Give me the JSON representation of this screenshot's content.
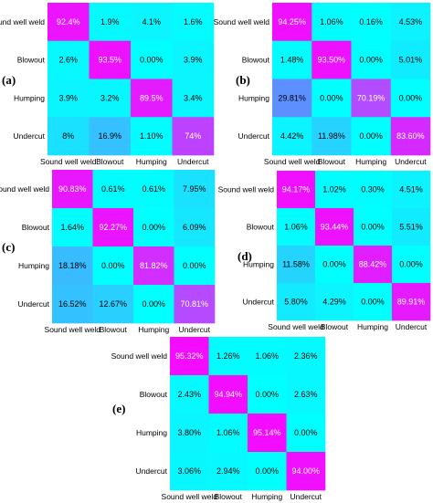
{
  "chart_data": [
    {
      "type": "heatmap",
      "panel": "(a)",
      "rows": [
        "Sound well weld",
        "Blowout",
        "Humping",
        "Undercut"
      ],
      "columns": [
        "Sound well weld",
        "Blowout",
        "Humping",
        "Undercut"
      ],
      "values": [
        [
          92.4,
          1.9,
          4.1,
          1.6
        ],
        [
          2.6,
          93.5,
          0.0,
          3.9
        ],
        [
          3.9,
          3.2,
          89.5,
          3.4
        ],
        [
          8,
          16.9,
          1.1,
          74
        ]
      ],
      "labels": [
        [
          "92.4%",
          "1.9%",
          "4.1%",
          "1.6%"
        ],
        [
          "2.6%",
          "93.5%",
          "0.00%",
          "3.9%"
        ],
        [
          "3.9%",
          "3.2%",
          "89.5%",
          "3.4%"
        ],
        [
          "8%",
          "16.9%",
          "1.10%",
          "74%"
        ]
      ]
    },
    {
      "type": "heatmap",
      "panel": "(b)",
      "rows": [
        "Sound well weld",
        "Blowout",
        "Humping",
        "Undercut"
      ],
      "columns": [
        "Sound well weld",
        "Blowout",
        "Humping",
        "Undercut"
      ],
      "values": [
        [
          94.25,
          1.06,
          0.16,
          4.53
        ],
        [
          1.48,
          93.5,
          0.0,
          5.01
        ],
        [
          29.81,
          0.0,
          70.19,
          0.0
        ],
        [
          4.42,
          11.98,
          0.0,
          83.6
        ]
      ],
      "labels": [
        [
          "94.25%",
          "1.06%",
          "0.16%",
          "4.53%"
        ],
        [
          "1.48%",
          "93.50%",
          "0.00%",
          "5.01%"
        ],
        [
          "29.81%",
          "0.00%",
          "70.19%",
          "0.00%"
        ],
        [
          "4.42%",
          "11.98%",
          "0.00%",
          "83.60%"
        ]
      ]
    },
    {
      "type": "heatmap",
      "panel": "(c)",
      "rows": [
        "Sound well weld",
        "Blowout",
        "Humping",
        "Undercut"
      ],
      "columns": [
        "Sound well weld",
        "Blowout",
        "Humping",
        "Undercut"
      ],
      "values": [
        [
          90.83,
          0.61,
          0.61,
          7.95
        ],
        [
          1.64,
          92.27,
          0.0,
          6.09
        ],
        [
          18.18,
          0.0,
          81.82,
          0.0
        ],
        [
          16.52,
          12.67,
          0.0,
          70.81
        ]
      ],
      "labels": [
        [
          "90.83%",
          "0.61%",
          "0.61%",
          "7.95%"
        ],
        [
          "1.64%",
          "92.27%",
          "0.00%",
          "6.09%"
        ],
        [
          "18.18%",
          "0.00%",
          "81.82%",
          "0.00%"
        ],
        [
          "16.52%",
          "12.67%",
          "0.00%",
          "70.81%"
        ]
      ]
    },
    {
      "type": "heatmap",
      "panel": "(d)",
      "rows": [
        "Sound well weld",
        "Blowout",
        "Humping",
        "Undercut"
      ],
      "columns": [
        "Sound well weld",
        "Blowout",
        "Humping",
        "Undercut"
      ],
      "values": [
        [
          94.17,
          1.02,
          0.3,
          4.51
        ],
        [
          1.06,
          93.44,
          0.0,
          5.51
        ],
        [
          11.58,
          0.0,
          88.42,
          0.0
        ],
        [
          5.8,
          4.29,
          0.0,
          89.91
        ]
      ],
      "labels": [
        [
          "94.17%",
          "1.02%",
          "0.30%",
          "4.51%"
        ],
        [
          "1.06%",
          "93.44%",
          "0.00%",
          "5.51%"
        ],
        [
          "11.58%",
          "0.00%",
          "88.42%",
          "0.00%"
        ],
        [
          "5.80%",
          "4.29%",
          "0.00%",
          "89.91%"
        ]
      ]
    },
    {
      "type": "heatmap",
      "panel": "(e)",
      "rows": [
        "Sound well weld",
        "Blowout",
        "Humping",
        "Undercut"
      ],
      "columns": [
        "Sound well weld",
        "Blowout",
        "Humping",
        "Undercut"
      ],
      "values": [
        [
          95.32,
          1.26,
          1.06,
          2.36
        ],
        [
          2.43,
          94.94,
          0.0,
          2.63
        ],
        [
          3.8,
          1.06,
          95.14,
          0.0
        ],
        [
          3.06,
          2.94,
          0.0,
          94.0
        ]
      ],
      "labels": [
        [
          "95.32%",
          "1.26%",
          "1.06%",
          "2.36%"
        ],
        [
          "2.43%",
          "94.94%",
          "0.00%",
          "2.63%"
        ],
        [
          "3.80%",
          "1.06%",
          "95.14%",
          "0.00%"
        ],
        [
          "3.06%",
          "2.94%",
          "0.00%",
          "94.00%"
        ]
      ]
    }
  ],
  "colors": {
    "low": "#00ffff",
    "high": "#ff00ff"
  }
}
